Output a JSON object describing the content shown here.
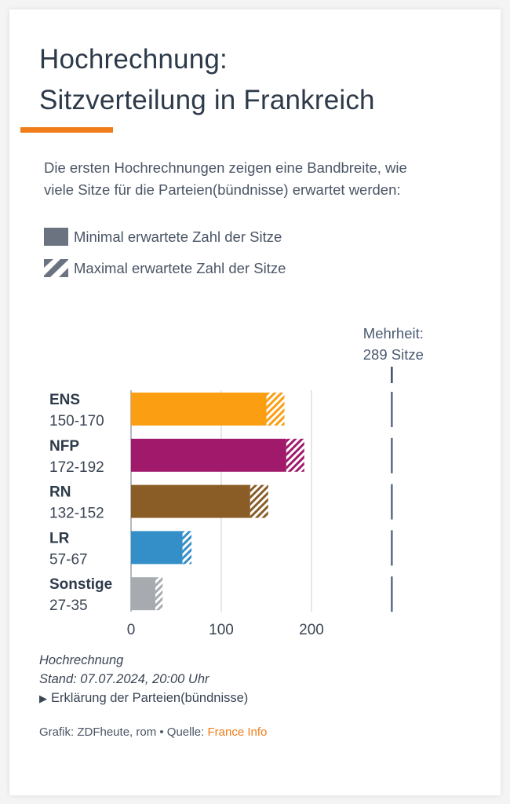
{
  "header": {
    "title_line1": "Hochrechnung:",
    "title_line2": "Sitzverteilung in Frankreich",
    "accent_color": "#f07d19"
  },
  "intro": {
    "text": "Die ersten Hochrechnungen zeigen eine Bandbreite, wie viele Sitze für die Parteien(bündnisse) erwartet werden:"
  },
  "legend": {
    "min_label": "Minimal erwartete Zahl der Sitze",
    "max_label": "Maximal erwartete Zahl der Sitze",
    "swatch_color": "#6b7280"
  },
  "chart_data": {
    "type": "bar",
    "orientation": "horizontal",
    "title": "Hochrechnung: Sitzverteilung in Frankreich",
    "xlabel": "",
    "ylabel": "",
    "xlim": [
      0,
      289
    ],
    "xticks": [
      0,
      100,
      200
    ],
    "grid": true,
    "categories": [
      "ENS",
      "NFP",
      "RN",
      "LR",
      "Sonstige"
    ],
    "range_labels": [
      "150-170",
      "172-192",
      "132-152",
      "57-67",
      "27-35"
    ],
    "series": [
      {
        "name": "Minimal erwartete Zahl der Sitze",
        "values": [
          150,
          172,
          132,
          57,
          27
        ],
        "style": "solid"
      },
      {
        "name": "Maximal erwartete Zahl der Sitze",
        "values": [
          170,
          192,
          152,
          67,
          35
        ],
        "style": "hatched"
      }
    ],
    "colors": [
      "#fb9e12",
      "#a0196b",
      "#8a5c26",
      "#348fc8",
      "#a7abb0"
    ],
    "reference_line": {
      "value": 289,
      "label_line1": "Mehrheit:",
      "label_line2": "289 Sitze",
      "color": "#5b6b80"
    }
  },
  "footer": {
    "line1": "Hochrechnung",
    "line2": "Stand: 07.07.2024, 20:00 Uhr",
    "disclosure_icon": "▶",
    "disclosure_label": "Erklärung der Parteien(bündnisse)",
    "credit_prefix": "Grafik: ZDFheute, rom • Quelle: ",
    "source_link": "France Info"
  }
}
